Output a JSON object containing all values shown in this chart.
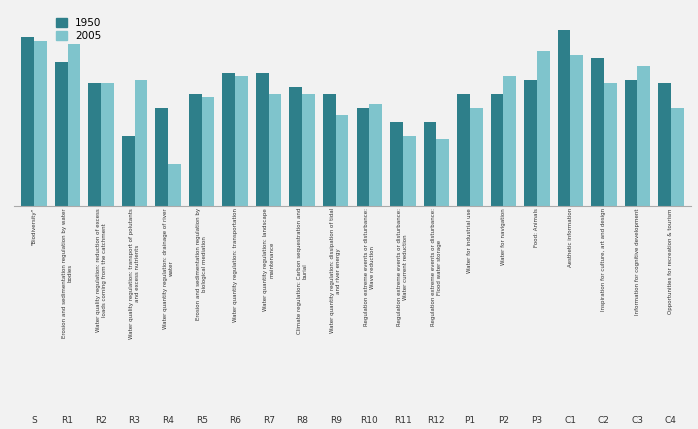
{
  "categories": [
    "S",
    "R1",
    "R2",
    "R3",
    "R4",
    "R5",
    "R6",
    "R7",
    "R8",
    "R9",
    "R10",
    "R11",
    "R12",
    "P1",
    "P2",
    "P3",
    "C1",
    "C2",
    "C3",
    "C4"
  ],
  "labels": [
    "\"Biodiversity\"",
    "Erosion and sedimentation regulation by water\nbodies",
    "Water quality regulation: reduction of excess\nloads coming from the catchment",
    "Water quality regulation: transport of polutants\nand excess nutrients",
    "Water quantity regulation: drainage of river\nwater",
    "Erosion and sedimentation regulation by\nbiological mediation",
    "Water quantity regulation: transportation",
    "Water quantity regulation: landscape\nmaintenance",
    "Climate regulation: Carbon sequestration and\nburial",
    "Water quantity regulation: dissipation of tidal\nand river energy",
    "Regulation extreme events or disturbance:\nWave reduction",
    "Regulation extreme events or disturbance:\nWater current reduction",
    "Regulation extreme events or disturbance:\nFlood water storage",
    "Water for industrial use",
    "Water for navigation",
    "Food: Animals",
    "Aesthetic information",
    "Inspiration for culture, art and design",
    "Information for cognitive development",
    "Opportunities for recreation & tourism"
  ],
  "values_1950": [
    4.8,
    4.1,
    3.5,
    2.0,
    2.8,
    3.2,
    3.8,
    3.8,
    3.4,
    3.2,
    2.8,
    2.4,
    2.4,
    3.2,
    3.2,
    3.6,
    5.0,
    4.2,
    3.6,
    3.5
  ],
  "values_2005": [
    4.7,
    4.6,
    3.5,
    3.6,
    1.2,
    3.1,
    3.7,
    3.2,
    3.2,
    2.6,
    2.9,
    2.0,
    1.9,
    2.8,
    3.7,
    4.4,
    4.3,
    3.5,
    4.0,
    2.8
  ],
  "color_1950": "#2E7F8A",
  "color_2005": "#7FC4CC",
  "legend_labels": [
    "1950",
    "2005"
  ],
  "bar_width": 0.38,
  "ylim": [
    0,
    5.5
  ],
  "bg_color": "#f2f2f2",
  "legend_fontsize": 7.5,
  "tick_fontsize": 6.5,
  "label_fontsize": 4.0
}
